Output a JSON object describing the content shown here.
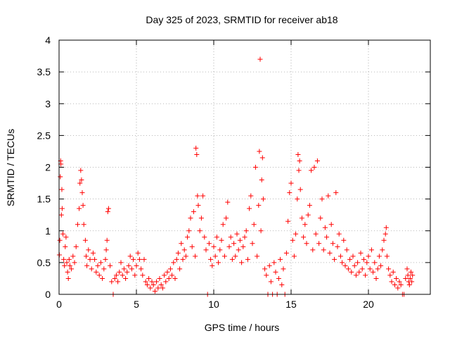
{
  "chart_data": {
    "type": "scatter",
    "title": "Day 325 of 2023, SRMTID for receiver ab18",
    "xlabel": "GPS time / hours",
    "ylabel": "SRMTID / TECUs",
    "xlim": [
      0,
      24
    ],
    "ylim": [
      0,
      4
    ],
    "xticks": [
      0,
      5,
      10,
      15,
      20
    ],
    "xtick_labels": [
      "0",
      "5",
      "10",
      "15",
      "20"
    ],
    "yticks": [
      0,
      0.5,
      1,
      1.5,
      2,
      2.5,
      3,
      3.5,
      4
    ],
    "ytick_labels": [
      "0",
      "0.5",
      "1",
      "1.5",
      "2",
      "2.5",
      "3",
      "3.5",
      "4"
    ],
    "grid": true,
    "marker": "+",
    "color": "#ff0000",
    "series": [
      {
        "name": "SRMTID",
        "points": [
          [
            0.02,
            0.62
          ],
          [
            0.05,
            0.85
          ],
          [
            0.08,
            1.85
          ],
          [
            0.1,
            2.1
          ],
          [
            0.12,
            2.05
          ],
          [
            0.15,
            1.25
          ],
          [
            0.18,
            1.65
          ],
          [
            0.2,
            1.35
          ],
          [
            0.25,
            0.95
          ],
          [
            0.3,
            0.55
          ],
          [
            0.35,
            0.45
          ],
          [
            0.4,
            0.75
          ],
          [
            0.45,
            0.9
          ],
          [
            0.5,
            0.5
          ],
          [
            0.55,
            0.35
          ],
          [
            0.6,
            0.25
          ],
          [
            0.65,
            0.55
          ],
          [
            0.7,
            0.45
          ],
          [
            0.8,
            0.4
          ],
          [
            0.9,
            0.6
          ],
          [
            1.0,
            0.5
          ],
          [
            1.1,
            0.75
          ],
          [
            1.2,
            1.1
          ],
          [
            1.3,
            1.35
          ],
          [
            1.35,
            1.75
          ],
          [
            1.4,
            1.95
          ],
          [
            1.45,
            1.8
          ],
          [
            1.5,
            1.6
          ],
          [
            1.55,
            1.4
          ],
          [
            1.6,
            1.1
          ],
          [
            1.7,
            0.85
          ],
          [
            1.75,
            0.6
          ],
          [
            1.8,
            0.45
          ],
          [
            1.9,
            0.7
          ],
          [
            2.0,
            0.55
          ],
          [
            2.1,
            0.4
          ],
          [
            2.2,
            0.65
          ],
          [
            2.3,
            0.55
          ],
          [
            2.4,
            0.35
          ],
          [
            2.5,
            0.45
          ],
          [
            2.6,
            0.3
          ],
          [
            2.7,
            0.5
          ],
          [
            2.8,
            0.25
          ],
          [
            2.9,
            0.4
          ],
          [
            3.0,
            0.55
          ],
          [
            3.05,
            0.7
          ],
          [
            3.1,
            0.85
          ],
          [
            3.15,
            1.3
          ],
          [
            3.2,
            1.35
          ],
          [
            3.3,
            0.45
          ],
          [
            3.4,
            0.2
          ],
          [
            3.5,
            0.0
          ],
          [
            3.6,
            0.25
          ],
          [
            3.7,
            0.3
          ],
          [
            3.8,
            0.2
          ],
          [
            3.9,
            0.35
          ],
          [
            4.0,
            0.5
          ],
          [
            4.1,
            0.3
          ],
          [
            4.2,
            0.4
          ],
          [
            4.3,
            0.25
          ],
          [
            4.4,
            0.35
          ],
          [
            4.5,
            0.45
          ],
          [
            4.6,
            0.6
          ],
          [
            4.7,
            0.4
          ],
          [
            4.8,
            0.55
          ],
          [
            4.9,
            0.3
          ],
          [
            5.0,
            0.45
          ],
          [
            5.1,
            0.65
          ],
          [
            5.2,
            0.55
          ],
          [
            5.3,
            0.4
          ],
          [
            5.4,
            0.3
          ],
          [
            5.5,
            0.55
          ],
          [
            5.6,
            0.2
          ],
          [
            5.7,
            0.15
          ],
          [
            5.8,
            0.25
          ],
          [
            5.9,
            0.1
          ],
          [
            6.0,
            0.2
          ],
          [
            6.1,
            0.15
          ],
          [
            6.2,
            0.05
          ],
          [
            6.3,
            0.2
          ],
          [
            6.4,
            0.1
          ],
          [
            6.5,
            0.25
          ],
          [
            6.6,
            0.15
          ],
          [
            6.7,
            0.1
          ],
          [
            6.8,
            0.3
          ],
          [
            6.9,
            0.2
          ],
          [
            7.0,
            0.35
          ],
          [
            7.1,
            0.25
          ],
          [
            7.2,
            0.4
          ],
          [
            7.3,
            0.3
          ],
          [
            7.4,
            0.5
          ],
          [
            7.5,
            0.25
          ],
          [
            7.6,
            0.55
          ],
          [
            7.7,
            0.65
          ],
          [
            7.8,
            0.4
          ],
          [
            7.9,
            0.8
          ],
          [
            8.0,
            0.55
          ],
          [
            8.1,
            0.7
          ],
          [
            8.2,
            0.6
          ],
          [
            8.3,
            0.9
          ],
          [
            8.4,
            1.0
          ],
          [
            8.5,
            1.2
          ],
          [
            8.6,
            0.75
          ],
          [
            8.7,
            1.3
          ],
          [
            8.8,
            0.6
          ],
          [
            8.85,
            2.3
          ],
          [
            8.9,
            2.2
          ],
          [
            8.95,
            1.55
          ],
          [
            9.0,
            1.4
          ],
          [
            9.1,
            1.0
          ],
          [
            9.2,
            1.2
          ],
          [
            9.3,
            1.55
          ],
          [
            9.4,
            0.9
          ],
          [
            9.5,
            0.7
          ],
          [
            9.6,
            0.0
          ],
          [
            9.7,
            0.8
          ],
          [
            9.8,
            0.55
          ],
          [
            9.9,
            0.45
          ],
          [
            10.0,
            0.75
          ],
          [
            10.1,
            0.6
          ],
          [
            10.2,
            0.9
          ],
          [
            10.3,
            0.5
          ],
          [
            10.4,
            0.7
          ],
          [
            10.5,
            0.85
          ],
          [
            10.6,
            1.1
          ],
          [
            10.7,
            0.6
          ],
          [
            10.8,
            1.2
          ],
          [
            10.9,
            1.45
          ],
          [
            11.0,
            0.75
          ],
          [
            11.1,
            0.9
          ],
          [
            11.2,
            0.55
          ],
          [
            11.3,
            0.8
          ],
          [
            11.4,
            0.6
          ],
          [
            11.5,
            0.95
          ],
          [
            11.6,
            0.7
          ],
          [
            11.7,
            0.85
          ],
          [
            11.8,
            0.5
          ],
          [
            11.9,
            0.75
          ],
          [
            12.0,
            0.9
          ],
          [
            12.1,
            1.0
          ],
          [
            12.2,
            0.55
          ],
          [
            12.3,
            1.35
          ],
          [
            12.4,
            1.55
          ],
          [
            12.5,
            0.8
          ],
          [
            12.6,
            1.1
          ],
          [
            12.7,
            2.0
          ],
          [
            12.8,
            0.6
          ],
          [
            12.9,
            1.4
          ],
          [
            12.95,
            2.25
          ],
          [
            13.0,
            3.7
          ],
          [
            13.05,
            1.0
          ],
          [
            13.1,
            1.8
          ],
          [
            13.15,
            2.15
          ],
          [
            13.2,
            1.5
          ],
          [
            13.3,
            0.4
          ],
          [
            13.4,
            0.3
          ],
          [
            13.5,
            0.0
          ],
          [
            13.6,
            0.45
          ],
          [
            13.7,
            0.2
          ],
          [
            13.8,
            0.0
          ],
          [
            13.9,
            0.5
          ],
          [
            14.0,
            0.35
          ],
          [
            14.1,
            0.0
          ],
          [
            14.2,
            0.25
          ],
          [
            14.3,
            0.55
          ],
          [
            14.4,
            0.15
          ],
          [
            14.5,
            0.4
          ],
          [
            14.6,
            0.0
          ],
          [
            14.7,
            0.65
          ],
          [
            14.8,
            1.15
          ],
          [
            14.9,
            1.6
          ],
          [
            15.0,
            1.75
          ],
          [
            15.1,
            0.85
          ],
          [
            15.2,
            0.6
          ],
          [
            15.3,
            0.95
          ],
          [
            15.4,
            1.5
          ],
          [
            15.45,
            2.2
          ],
          [
            15.5,
            1.95
          ],
          [
            15.55,
            2.1
          ],
          [
            15.6,
            1.65
          ],
          [
            15.7,
            1.2
          ],
          [
            15.8,
            0.9
          ],
          [
            15.9,
            1.1
          ],
          [
            16.0,
            0.8
          ],
          [
            16.1,
            1.25
          ],
          [
            16.2,
            1.4
          ],
          [
            16.3,
            1.95
          ],
          [
            16.4,
            0.7
          ],
          [
            16.5,
            2.0
          ],
          [
            16.6,
            0.95
          ],
          [
            16.7,
            2.1
          ],
          [
            16.8,
            0.8
          ],
          [
            16.9,
            1.2
          ],
          [
            17.0,
            1.5
          ],
          [
            17.1,
            0.7
          ],
          [
            17.2,
            1.05
          ],
          [
            17.3,
            0.9
          ],
          [
            17.4,
            1.55
          ],
          [
            17.5,
            0.65
          ],
          [
            17.6,
            1.1
          ],
          [
            17.7,
            0.8
          ],
          [
            17.8,
            0.55
          ],
          [
            17.9,
            1.6
          ],
          [
            18.0,
            0.75
          ],
          [
            18.1,
            0.95
          ],
          [
            18.2,
            0.6
          ],
          [
            18.3,
            0.5
          ],
          [
            18.4,
            0.85
          ],
          [
            18.5,
            0.45
          ],
          [
            18.6,
            0.7
          ],
          [
            18.7,
            0.4
          ],
          [
            18.8,
            0.55
          ],
          [
            18.9,
            0.35
          ],
          [
            19.0,
            0.6
          ],
          [
            19.1,
            0.45
          ],
          [
            19.2,
            0.3
          ],
          [
            19.3,
            0.5
          ],
          [
            19.4,
            0.35
          ],
          [
            19.5,
            0.65
          ],
          [
            19.6,
            0.4
          ],
          [
            19.7,
            0.55
          ],
          [
            19.8,
            0.3
          ],
          [
            19.9,
            0.5
          ],
          [
            20.0,
            0.6
          ],
          [
            20.1,
            0.4
          ],
          [
            20.2,
            0.7
          ],
          [
            20.3,
            0.35
          ],
          [
            20.4,
            0.5
          ],
          [
            20.5,
            0.25
          ],
          [
            20.6,
            0.4
          ],
          [
            20.7,
            0.6
          ],
          [
            20.8,
            0.45
          ],
          [
            20.9,
            0.7
          ],
          [
            21.0,
            0.85
          ],
          [
            21.1,
            0.95
          ],
          [
            21.15,
            1.05
          ],
          [
            21.2,
            0.6
          ],
          [
            21.3,
            0.4
          ],
          [
            21.4,
            0.3
          ],
          [
            21.5,
            0.2
          ],
          [
            21.6,
            0.35
          ],
          [
            21.7,
            0.15
          ],
          [
            21.8,
            0.25
          ],
          [
            21.9,
            0.1
          ],
          [
            22.0,
            0.2
          ],
          [
            22.1,
            0.15
          ],
          [
            22.2,
            0.0
          ],
          [
            22.3,
            0.0
          ],
          [
            22.4,
            0.25
          ],
          [
            22.5,
            0.4
          ],
          [
            22.55,
            0.3
          ],
          [
            22.6,
            0.2
          ],
          [
            22.65,
            0.15
          ],
          [
            22.7,
            0.25
          ],
          [
            22.75,
            0.35
          ],
          [
            22.8,
            0.2
          ],
          [
            22.85,
            0.3
          ]
        ]
      }
    ]
  }
}
